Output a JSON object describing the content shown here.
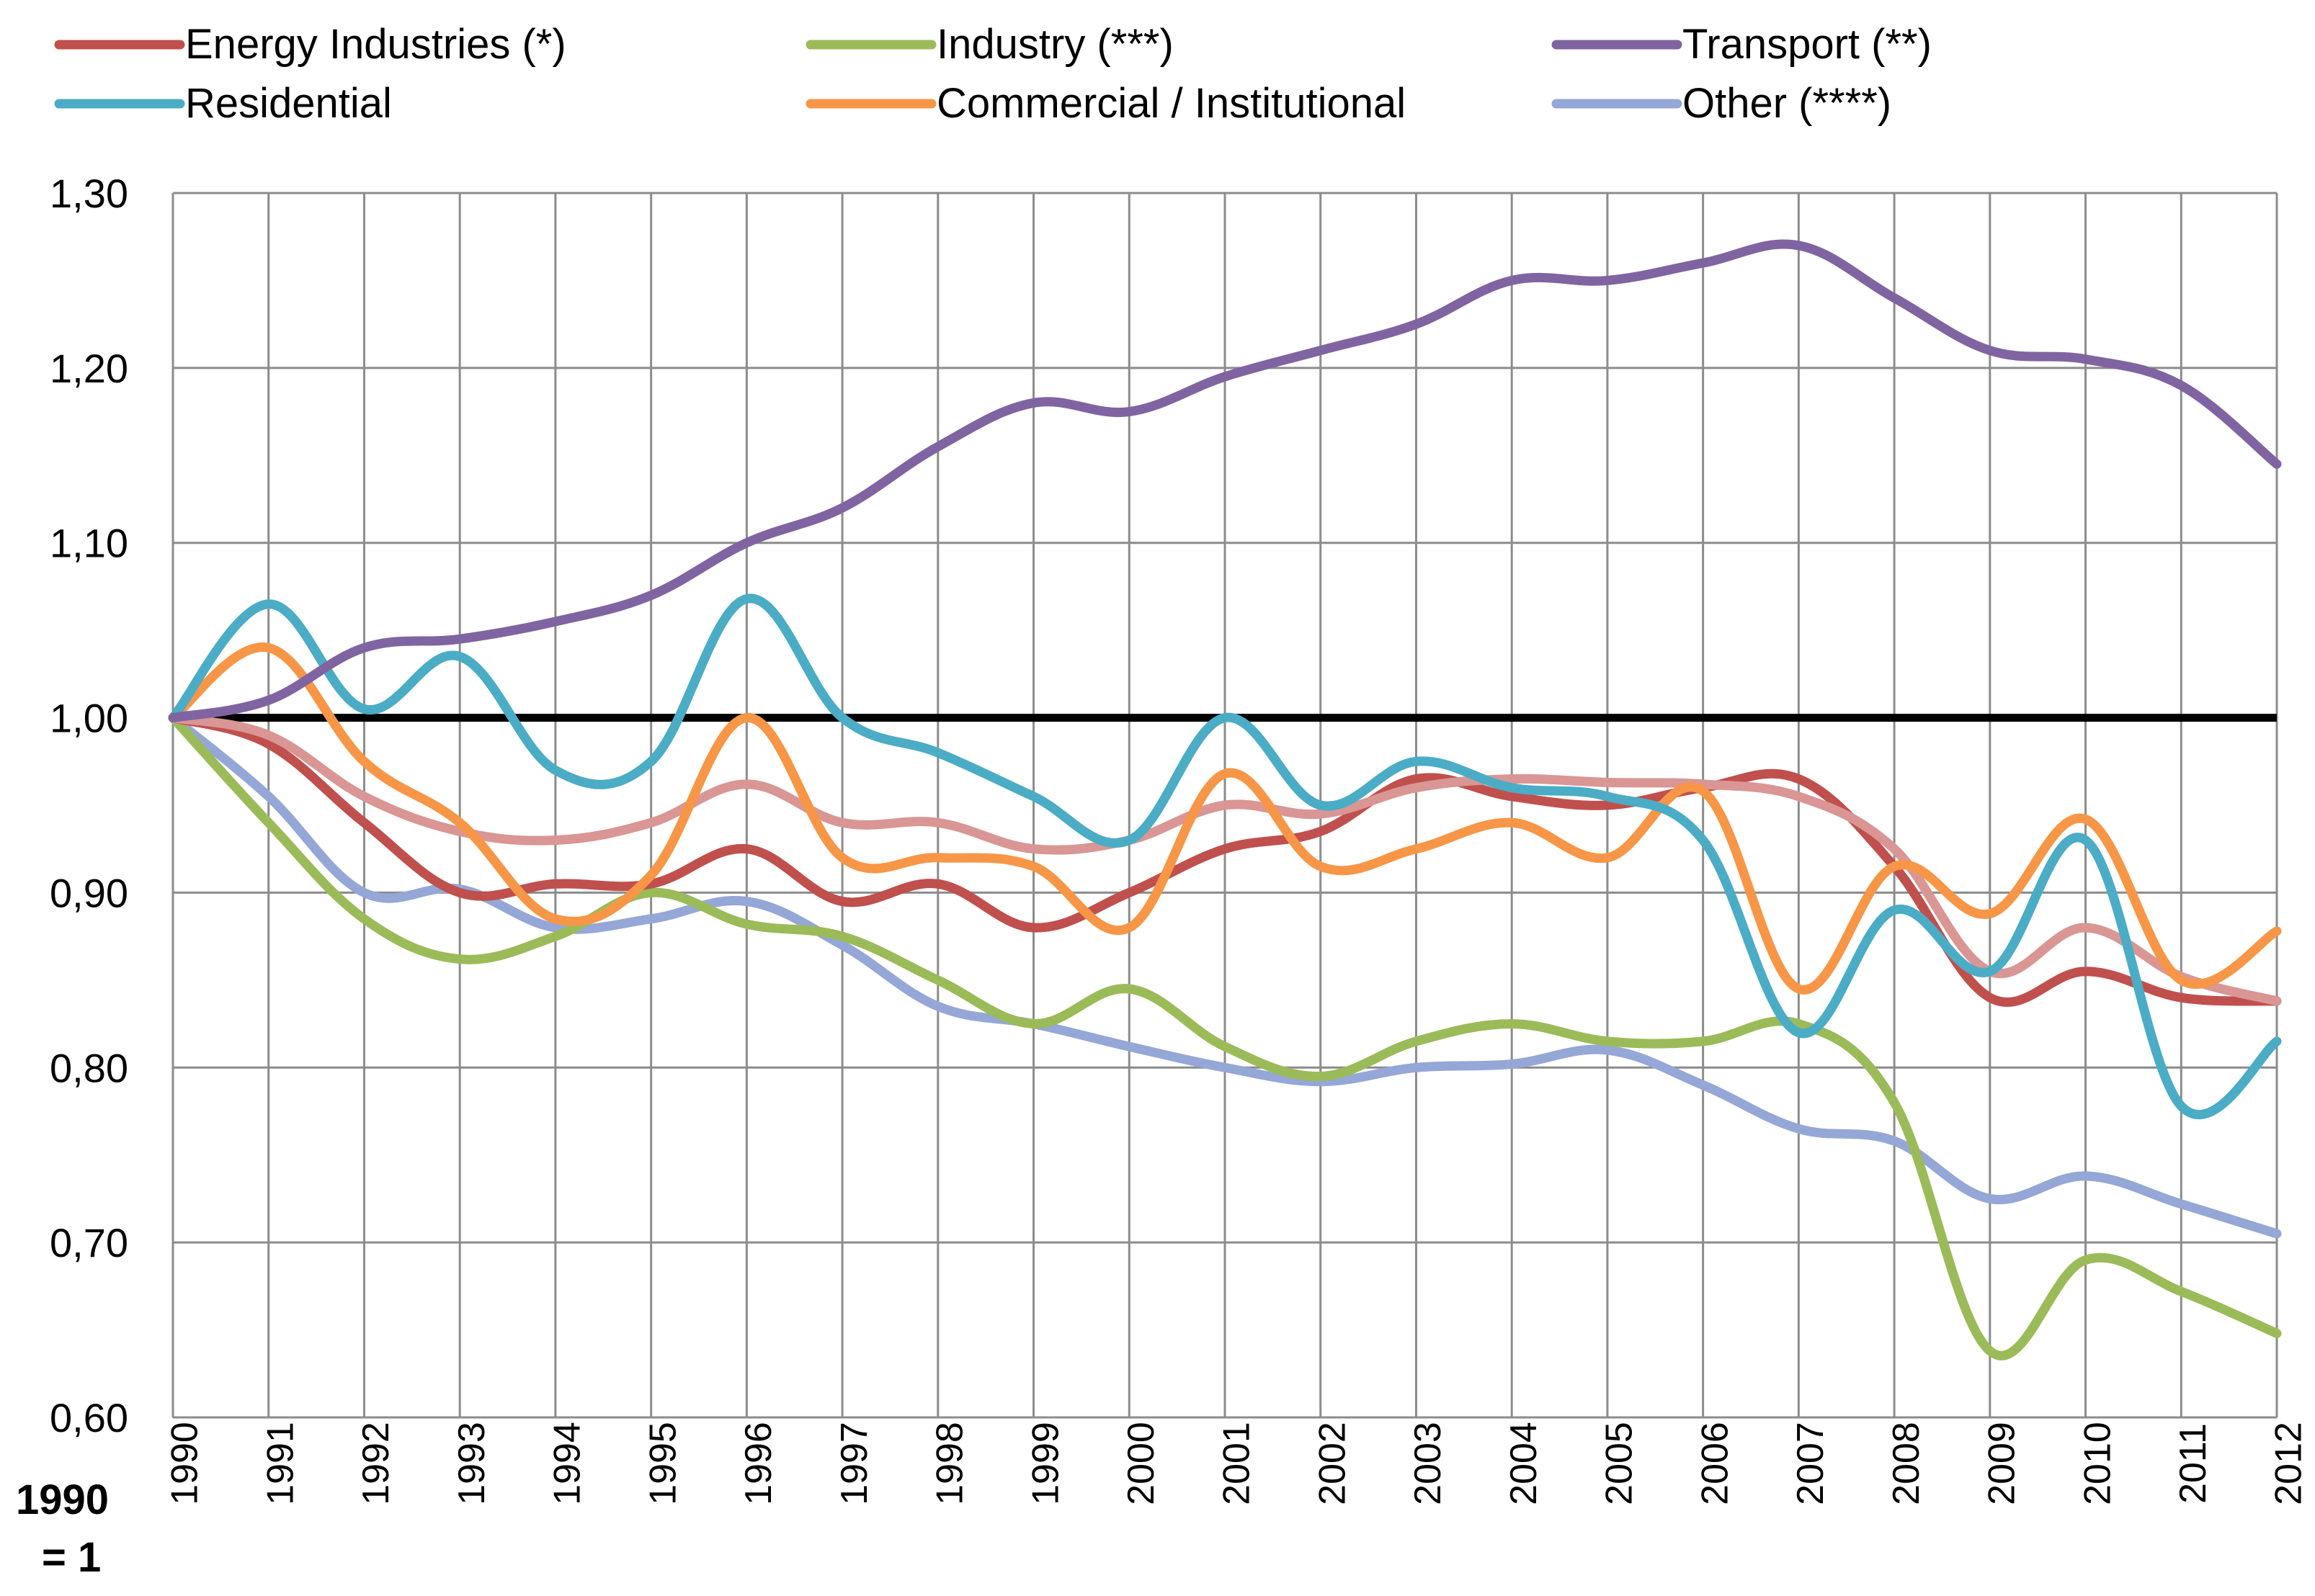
{
  "chart_data": {
    "type": "line",
    "title": "",
    "xlabel": "",
    "ylabel": "",
    "baseline_label_line1": "1990",
    "baseline_label_line2": "= 1",
    "ylim": [
      0.6,
      1.3
    ],
    "y_ticks": [
      "0,60",
      "0,70",
      "0,80",
      "0,90",
      "1,00",
      "1,10",
      "1,20",
      "1,30"
    ],
    "y_tick_values": [
      0.6,
      0.7,
      0.8,
      0.9,
      1.0,
      1.1,
      1.2,
      1.3
    ],
    "grid": true,
    "legend_position": "top",
    "reference_line": {
      "value": 1.0,
      "color": "#000000"
    },
    "categories": [
      "1990",
      "1991",
      "1992",
      "1993",
      "1994",
      "1995",
      "1996",
      "1997",
      "1998",
      "1999",
      "2000",
      "2001",
      "2002",
      "2003",
      "2004",
      "2005",
      "2006",
      "2007",
      "2008",
      "2009",
      "2010",
      "2011",
      "2012"
    ],
    "series": [
      {
        "name": "Energy Industries (*)",
        "color": "#C0504D",
        "values": [
          1.0,
          0.985,
          0.94,
          0.9,
          0.905,
          0.905,
          0.925,
          0.895,
          0.905,
          0.88,
          0.9,
          0.925,
          0.935,
          0.965,
          0.955,
          0.95,
          0.96,
          0.965,
          0.915,
          0.84,
          0.855,
          0.84,
          0.838
        ]
      },
      {
        "name": "Industry (***)",
        "color": "#9BBB59",
        "values": [
          1.0,
          0.94,
          0.885,
          0.862,
          0.875,
          0.9,
          0.882,
          0.875,
          0.85,
          0.825,
          0.845,
          0.812,
          0.795,
          0.815,
          0.825,
          0.815,
          0.815,
          0.825,
          0.78,
          0.638,
          0.69,
          0.672,
          0.648
        ]
      },
      {
        "name": "Transport (**)",
        "color": "#8064A2",
        "values": [
          1.0,
          1.01,
          1.04,
          1.045,
          1.055,
          1.07,
          1.1,
          1.12,
          1.155,
          1.18,
          1.175,
          1.195,
          1.21,
          1.225,
          1.25,
          1.25,
          1.26,
          1.27,
          1.24,
          1.21,
          1.205,
          1.19,
          1.145
        ]
      },
      {
        "name": "Residential",
        "color": "#4BACC6",
        "values": [
          1.0,
          1.065,
          1.005,
          1.035,
          0.97,
          0.975,
          1.068,
          1.0,
          0.98,
          0.955,
          0.93,
          1.0,
          0.95,
          0.975,
          0.96,
          0.955,
          0.93,
          0.82,
          0.89,
          0.855,
          0.93,
          0.778,
          0.815
        ]
      },
      {
        "name": "Commercial / Institutional",
        "color": "#F79646",
        "values": [
          1.0,
          1.04,
          0.975,
          0.94,
          0.885,
          0.91,
          1.0,
          0.92,
          0.92,
          0.915,
          0.88,
          0.968,
          0.915,
          0.925,
          0.94,
          0.92,
          0.958,
          0.845,
          0.915,
          0.888,
          0.942,
          0.85,
          0.878
        ]
      },
      {
        "name": "Other (****)",
        "color": "#95A7D6",
        "values": [
          1.0,
          0.955,
          0.9,
          0.902,
          0.88,
          0.885,
          0.895,
          0.87,
          0.835,
          0.825,
          0.812,
          0.8,
          0.792,
          0.8,
          0.802,
          0.81,
          0.79,
          0.765,
          0.758,
          0.725,
          0.738,
          0.722,
          0.705
        ]
      },
      {
        "name": "",
        "color": "#D99694",
        "values": [
          1.0,
          0.99,
          0.955,
          0.935,
          0.93,
          0.94,
          0.962,
          0.94,
          0.94,
          0.925,
          0.93,
          0.95,
          0.945,
          0.96,
          0.965,
          0.963,
          0.962,
          0.955,
          0.925,
          0.855,
          0.88,
          0.852,
          0.838
        ]
      }
    ],
    "legend_order": [
      0,
      1,
      2,
      3,
      4,
      5
    ]
  }
}
